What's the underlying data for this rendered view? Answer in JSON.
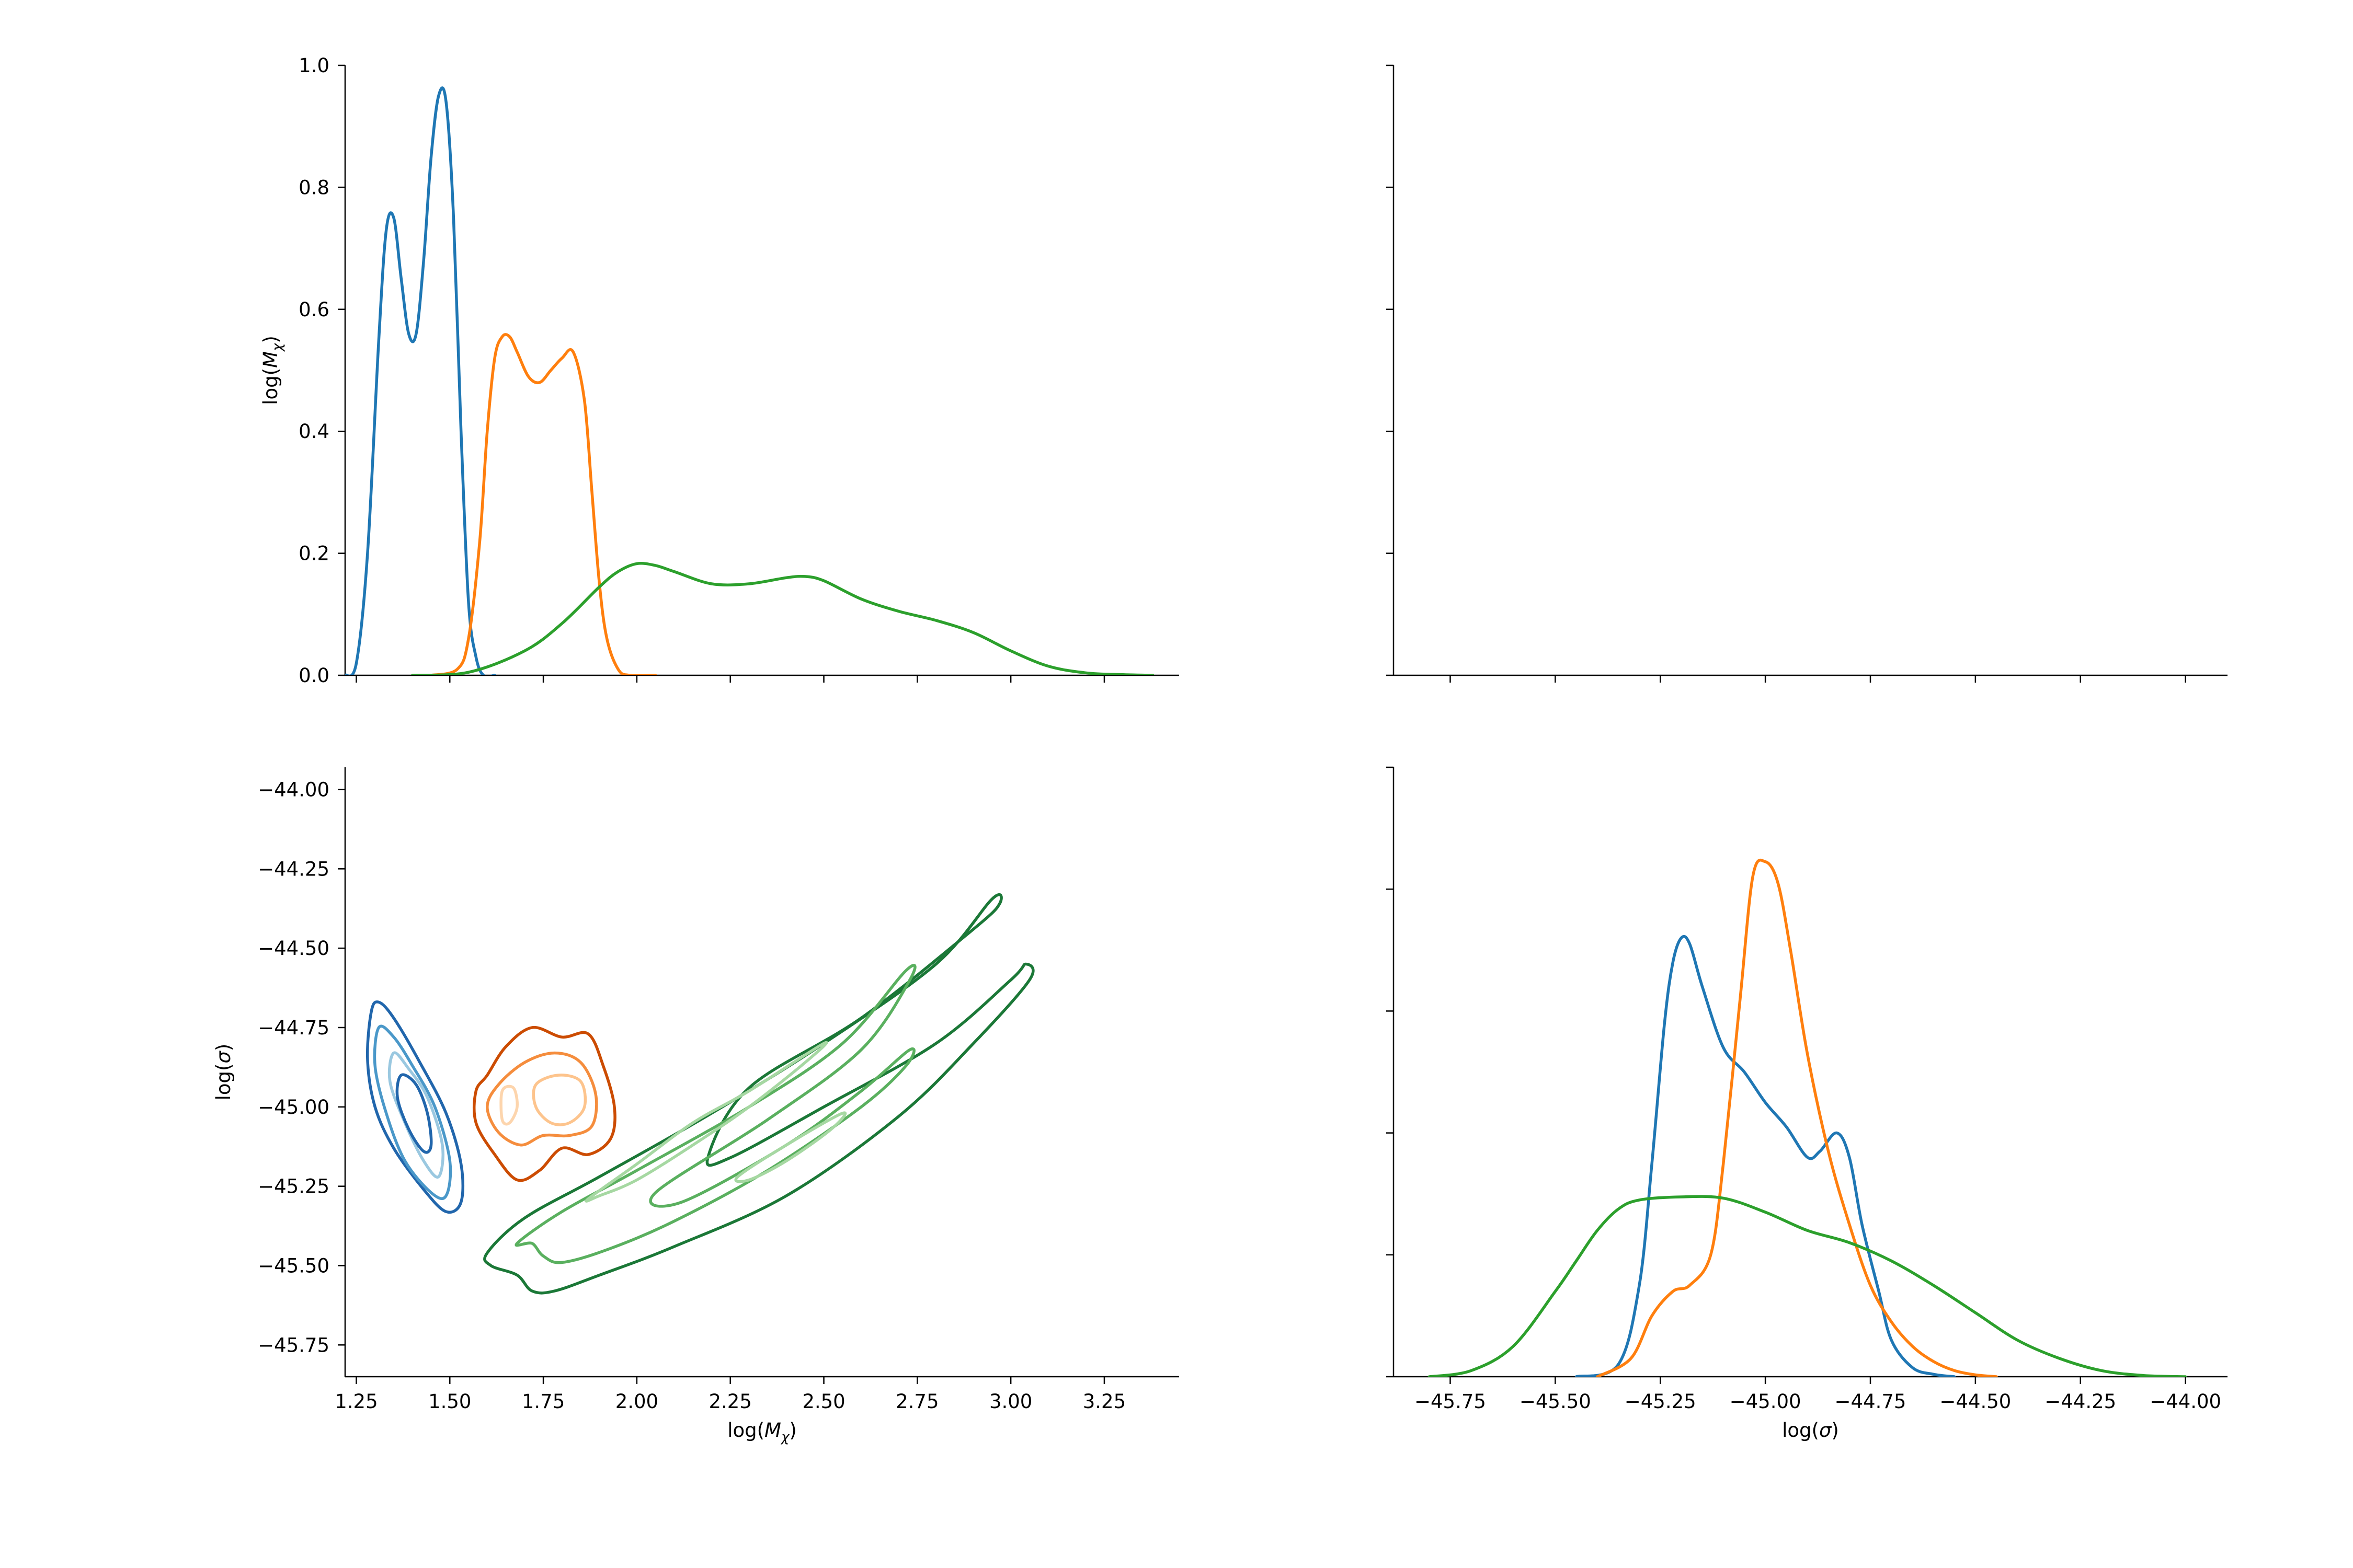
{
  "colors": {
    "blue": "#1f77b4",
    "orange": "#ff7f0e",
    "green": "#2ca02c",
    "axis": "#000000"
  },
  "chart_data": [
    {
      "panel": "top-left",
      "type": "line",
      "title": "",
      "xlabel": "",
      "ylabel": "log($M_\\chi$)",
      "xlim": [
        1.22,
        3.45
      ],
      "ylim": [
        0.0,
        1.0
      ],
      "xticks": [
        1.25,
        1.5,
        1.75,
        2.0,
        2.25,
        2.5,
        2.75,
        3.0,
        3.25
      ],
      "yticks": [
        0.0,
        0.2,
        0.4,
        0.6,
        0.8,
        1.0
      ],
      "ytick_labels": [
        "0.0",
        "0.2",
        "0.4",
        "0.6",
        "0.8",
        "1.0"
      ],
      "show_xtick_labels": false,
      "show_ytick_labels": true,
      "series": [
        {
          "name": "blue",
          "color": "blue",
          "x": [
            1.22,
            1.25,
            1.28,
            1.31,
            1.33,
            1.35,
            1.37,
            1.39,
            1.41,
            1.43,
            1.45,
            1.47,
            1.49,
            1.51,
            1.53,
            1.55,
            1.57,
            1.59,
            1.62
          ],
          "y": [
            0.0,
            0.02,
            0.2,
            0.55,
            0.73,
            0.75,
            0.65,
            0.56,
            0.56,
            0.68,
            0.85,
            0.95,
            0.94,
            0.75,
            0.4,
            0.12,
            0.03,
            0.0,
            0.0
          ]
        },
        {
          "name": "orange",
          "color": "orange",
          "x": [
            1.45,
            1.52,
            1.55,
            1.58,
            1.6,
            1.62,
            1.64,
            1.66,
            1.68,
            1.71,
            1.74,
            1.77,
            1.8,
            1.83,
            1.86,
            1.88,
            1.9,
            1.92,
            1.95,
            1.98,
            2.05
          ],
          "y": [
            0.0,
            0.01,
            0.06,
            0.22,
            0.4,
            0.52,
            0.555,
            0.555,
            0.53,
            0.49,
            0.48,
            0.5,
            0.52,
            0.53,
            0.45,
            0.3,
            0.15,
            0.06,
            0.01,
            0.0,
            0.0
          ]
        },
        {
          "name": "green",
          "color": "green",
          "x": [
            1.4,
            1.55,
            1.7,
            1.8,
            1.9,
            1.95,
            2.0,
            2.05,
            2.1,
            2.2,
            2.3,
            2.4,
            2.45,
            2.5,
            2.6,
            2.7,
            2.8,
            2.9,
            3.0,
            3.1,
            3.2,
            3.3,
            3.38
          ],
          "y": [
            0.0,
            0.005,
            0.04,
            0.085,
            0.145,
            0.17,
            0.183,
            0.18,
            0.17,
            0.15,
            0.15,
            0.16,
            0.162,
            0.155,
            0.125,
            0.105,
            0.09,
            0.07,
            0.04,
            0.015,
            0.004,
            0.001,
            0.0
          ]
        }
      ]
    },
    {
      "panel": "top-right",
      "type": "line",
      "title": "",
      "xlabel": "",
      "ylabel": "",
      "xlim": [
        -45.885,
        -43.9
      ],
      "ylim": [
        0.0,
        1.0
      ],
      "xticks": [
        -45.75,
        -45.5,
        -45.25,
        -45.0,
        -44.75,
        -44.5,
        -44.25,
        -44.0
      ],
      "yticks": [
        0.0,
        0.2,
        0.4,
        0.6,
        0.8,
        1.0
      ],
      "show_xtick_labels": false,
      "show_ytick_labels": false,
      "series": []
    },
    {
      "panel": "bottom-left",
      "type": "contour",
      "title": "",
      "xlabel": "log($M_\\chi$)",
      "ylabel": "log($\\sigma$)",
      "xlim": [
        1.22,
        3.45
      ],
      "ylim": [
        -45.85,
        -43.93
      ],
      "xticks": [
        1.25,
        1.5,
        1.75,
        2.0,
        2.25,
        2.5,
        2.75,
        3.0,
        3.25
      ],
      "xtick_labels": [
        "1.25",
        "1.50",
        "1.75",
        "2.00",
        "2.25",
        "2.50",
        "2.75",
        "3.00",
        "3.25"
      ],
      "yticks": [
        -44.0,
        -44.25,
        -44.5,
        -44.75,
        -45.0,
        -45.25,
        -45.5,
        -45.75
      ],
      "ytick_labels": [
        "−44.00",
        "−44.25",
        "−44.50",
        "−44.75",
        "−45.00",
        "−45.25",
        "−45.50",
        "−45.75"
      ],
      "show_xtick_labels": true,
      "show_ytick_labels": true,
      "contours": [
        {
          "name": "blue-outer",
          "color": "#2166ac",
          "points": [
            [
              1.29,
              -44.7
            ],
            [
              1.31,
              -44.67
            ],
            [
              1.35,
              -44.72
            ],
            [
              1.42,
              -44.86
            ],
            [
              1.49,
              -45.02
            ],
            [
              1.53,
              -45.18
            ],
            [
              1.53,
              -45.3
            ],
            [
              1.49,
              -45.33
            ],
            [
              1.43,
              -45.26
            ],
            [
              1.35,
              -45.13
            ],
            [
              1.3,
              -45.0
            ],
            [
              1.28,
              -44.85
            ]
          ]
        },
        {
          "name": "blue-mid",
          "color": "#4a98c9",
          "points": [
            [
              1.31,
              -44.75
            ],
            [
              1.35,
              -44.78
            ],
            [
              1.4,
              -44.87
            ],
            [
              1.46,
              -45.0
            ],
            [
              1.5,
              -45.17
            ],
            [
              1.49,
              -45.28
            ],
            [
              1.45,
              -45.27
            ],
            [
              1.38,
              -45.17
            ],
            [
              1.33,
              -45.02
            ],
            [
              1.3,
              -44.87
            ]
          ]
        },
        {
          "name": "blue-inner-1",
          "color": "#9ac8e0",
          "points": [
            [
              1.35,
              -44.83
            ],
            [
              1.39,
              -44.88
            ],
            [
              1.44,
              -44.97
            ],
            [
              1.48,
              -45.12
            ],
            [
              1.47,
              -45.22
            ],
            [
              1.43,
              -45.17
            ],
            [
              1.38,
              -45.05
            ],
            [
              1.34,
              -44.92
            ]
          ]
        },
        {
          "name": "blue-inner-2",
          "color": "#2166ac",
          "points": [
            [
              1.37,
              -44.9
            ],
            [
              1.41,
              -44.93
            ],
            [
              1.44,
              -45.02
            ],
            [
              1.45,
              -45.12
            ],
            [
              1.43,
              -45.14
            ],
            [
              1.39,
              -45.07
            ],
            [
              1.36,
              -44.97
            ]
          ]
        },
        {
          "name": "orange-outer",
          "color": "#cc4c02",
          "points": [
            [
              1.6,
              -44.9
            ],
            [
              1.65,
              -44.81
            ],
            [
              1.72,
              -44.75
            ],
            [
              1.8,
              -44.78
            ],
            [
              1.87,
              -44.77
            ],
            [
              1.91,
              -44.87
            ],
            [
              1.94,
              -45.0
            ],
            [
              1.93,
              -45.1
            ],
            [
              1.87,
              -45.15
            ],
            [
              1.8,
              -45.13
            ],
            [
              1.74,
              -45.2
            ],
            [
              1.68,
              -45.23
            ],
            [
              1.62,
              -45.15
            ],
            [
              1.57,
              -45.05
            ],
            [
              1.57,
              -44.95
            ]
          ]
        },
        {
          "name": "orange-mid",
          "color": "#f58d3d",
          "points": [
            [
              1.63,
              -44.93
            ],
            [
              1.7,
              -44.86
            ],
            [
              1.78,
              -44.83
            ],
            [
              1.85,
              -44.86
            ],
            [
              1.89,
              -44.96
            ],
            [
              1.88,
              -45.06
            ],
            [
              1.82,
              -45.09
            ],
            [
              1.75,
              -45.09
            ],
            [
              1.69,
              -45.12
            ],
            [
              1.63,
              -45.08
            ],
            [
              1.6,
              -45.0
            ]
          ]
        },
        {
          "name": "orange-inner-1",
          "color": "#fdc48d",
          "points": [
            [
              1.73,
              -44.93
            ],
            [
              1.79,
              -44.9
            ],
            [
              1.85,
              -44.92
            ],
            [
              1.86,
              -45.0
            ],
            [
              1.82,
              -45.05
            ],
            [
              1.77,
              -45.05
            ],
            [
              1.73,
              -45.0
            ]
          ]
        },
        {
          "name": "orange-inner-2",
          "color": "#fdd5ad",
          "points": [
            [
              1.64,
              -44.95
            ],
            [
              1.67,
              -44.94
            ],
            [
              1.68,
              -45.0
            ],
            [
              1.66,
              -45.05
            ],
            [
              1.64,
              -45.04
            ]
          ]
        },
        {
          "name": "green-outer",
          "color": "#1b7837",
          "points": [
            [
              1.6,
              -45.46
            ],
            [
              1.7,
              -45.35
            ],
            [
              1.9,
              -45.22
            ],
            [
              2.2,
              -45.02
            ],
            [
              2.5,
              -44.8
            ],
            [
              2.8,
              -44.55
            ],
            [
              2.95,
              -44.345
            ],
            [
              2.97,
              -44.36
            ],
            [
              2.9,
              -44.44
            ],
            [
              2.6,
              -44.72
            ],
            [
              2.3,
              -44.94
            ],
            [
              2.19,
              -45.16
            ],
            [
              2.25,
              -45.16
            ],
            [
              2.5,
              -45.0
            ],
            [
              2.8,
              -44.8
            ],
            [
              3.0,
              -44.6
            ],
            [
              3.04,
              -44.55
            ],
            [
              3.05,
              -44.6
            ],
            [
              2.9,
              -44.8
            ],
            [
              2.7,
              -45.03
            ],
            [
              2.4,
              -45.28
            ],
            [
              2.1,
              -45.44
            ],
            [
              1.9,
              -45.53
            ],
            [
              1.78,
              -45.58
            ],
            [
              1.72,
              -45.58
            ],
            [
              1.68,
              -45.53
            ],
            [
              1.61,
              -45.5
            ]
          ]
        },
        {
          "name": "green-mid",
          "color": "#5ab05f",
          "points": [
            [
              1.68,
              -45.43
            ],
            [
              1.8,
              -45.33
            ],
            [
              2.0,
              -45.2
            ],
            [
              2.3,
              -45.0
            ],
            [
              2.55,
              -44.8
            ],
            [
              2.72,
              -44.57
            ],
            [
              2.73,
              -44.6
            ],
            [
              2.6,
              -44.82
            ],
            [
              2.35,
              -45.04
            ],
            [
              2.05,
              -45.27
            ],
            [
              2.12,
              -45.3
            ],
            [
              2.4,
              -45.12
            ],
            [
              2.6,
              -44.95
            ],
            [
              2.73,
              -44.82
            ],
            [
              2.72,
              -44.87
            ],
            [
              2.6,
              -45.0
            ],
            [
              2.35,
              -45.2
            ],
            [
              2.1,
              -45.36
            ],
            [
              1.92,
              -45.45
            ],
            [
              1.8,
              -45.49
            ],
            [
              1.75,
              -45.47
            ],
            [
              1.72,
              -45.43
            ]
          ]
        },
        {
          "name": "green-inner-1",
          "color": "#a6d8a2",
          "points": [
            [
              1.87,
              -45.29
            ],
            [
              2.0,
              -45.18
            ],
            [
              2.15,
              -45.05
            ],
            [
              2.3,
              -44.95
            ],
            [
              2.5,
              -44.8
            ],
            [
              2.45,
              -44.86
            ],
            [
              2.3,
              -45.0
            ],
            [
              2.15,
              -45.12
            ],
            [
              2.0,
              -45.23
            ],
            [
              1.9,
              -45.28
            ]
          ]
        },
        {
          "name": "green-inner-2",
          "color": "#a6d8a2",
          "points": [
            [
              2.27,
              -45.22
            ],
            [
              2.4,
              -45.12
            ],
            [
              2.55,
              -45.02
            ],
            [
              2.52,
              -45.07
            ],
            [
              2.4,
              -45.17
            ],
            [
              2.3,
              -45.23
            ]
          ]
        }
      ]
    },
    {
      "panel": "bottom-right",
      "type": "line",
      "title": "",
      "xlabel": "log($\\sigma$)",
      "ylabel": "",
      "xlim": [
        -45.885,
        -43.9
      ],
      "ylim": [
        0.0,
        1.0
      ],
      "xticks": [
        -45.75,
        -45.5,
        -45.25,
        -45.0,
        -44.75,
        -44.5,
        -44.25,
        -44.0
      ],
      "xtick_labels": [
        "−45.75",
        "−45.50",
        "−45.25",
        "−45.00",
        "−44.75",
        "−44.50",
        "−44.25",
        "−44.00"
      ],
      "yticks": [
        0.0,
        0.2,
        0.4,
        0.6,
        0.8,
        1.0
      ],
      "show_xtick_labels": true,
      "show_ytick_labels": false,
      "series": [
        {
          "name": "blue",
          "color": "blue",
          "x": [
            -45.45,
            -45.35,
            -45.3,
            -45.27,
            -45.24,
            -45.22,
            -45.2,
            -45.18,
            -45.15,
            -45.1,
            -45.05,
            -45.0,
            -44.95,
            -44.9,
            -44.87,
            -44.83,
            -44.8,
            -44.77,
            -44.73,
            -44.7,
            -44.65,
            -44.6,
            -44.55
          ],
          "y": [
            0.0,
            0.02,
            0.15,
            0.35,
            0.58,
            0.68,
            0.72,
            0.71,
            0.64,
            0.54,
            0.5,
            0.45,
            0.41,
            0.36,
            0.37,
            0.4,
            0.36,
            0.25,
            0.14,
            0.06,
            0.015,
            0.004,
            0.0
          ]
        },
        {
          "name": "orange",
          "color": "orange",
          "x": [
            -45.4,
            -45.32,
            -45.27,
            -45.22,
            -45.18,
            -45.13,
            -45.1,
            -45.06,
            -45.03,
            -45.0,
            -44.97,
            -44.94,
            -44.9,
            -44.85,
            -44.8,
            -44.75,
            -44.7,
            -44.65,
            -44.6,
            -44.55,
            -44.5,
            -44.45
          ],
          "y": [
            0.0,
            0.03,
            0.1,
            0.14,
            0.15,
            0.2,
            0.35,
            0.62,
            0.82,
            0.845,
            0.81,
            0.7,
            0.53,
            0.37,
            0.25,
            0.15,
            0.09,
            0.05,
            0.025,
            0.01,
            0.003,
            0.0
          ]
        },
        {
          "name": "green",
          "color": "green",
          "x": [
            -45.8,
            -45.7,
            -45.6,
            -45.5,
            -45.45,
            -45.4,
            -45.35,
            -45.3,
            -45.2,
            -45.1,
            -45.0,
            -44.9,
            -44.8,
            -44.7,
            -44.6,
            -44.5,
            -44.4,
            -44.3,
            -44.2,
            -44.1,
            -44.0
          ],
          "y": [
            0.0,
            0.01,
            0.05,
            0.14,
            0.19,
            0.24,
            0.275,
            0.29,
            0.295,
            0.293,
            0.27,
            0.24,
            0.22,
            0.19,
            0.15,
            0.105,
            0.06,
            0.03,
            0.01,
            0.002,
            0.0
          ]
        }
      ]
    }
  ]
}
